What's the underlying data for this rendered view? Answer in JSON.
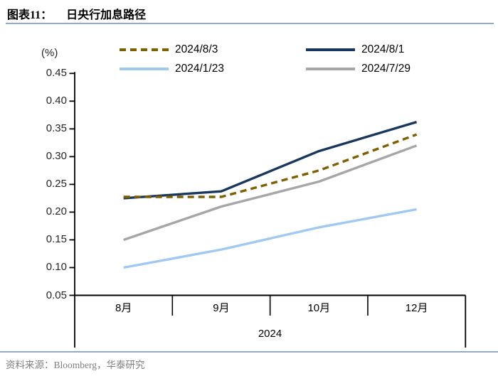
{
  "header": {
    "title_label": "图表11：",
    "title_text": "日央行加息路径"
  },
  "chart_data": {
    "type": "line",
    "title": "日央行加息路径",
    "unit_label": "(%)",
    "categories": [
      "8月",
      "9月",
      "10月",
      "12月"
    ],
    "x_axis_group_label": "2024",
    "series": [
      {
        "name": "2024/8/3",
        "color": "#7F6000",
        "dash": true,
        "values": [
          0.2275,
          0.2275,
          0.275,
          0.34
        ]
      },
      {
        "name": "2024/8/1",
        "color": "#17375E",
        "dash": false,
        "values": [
          0.225,
          0.2375,
          0.31,
          0.3625
        ]
      },
      {
        "name": "2024/1/23",
        "color": "#A0C9F2",
        "dash": false,
        "values": [
          0.1,
          0.1325,
          0.1725,
          0.205
        ]
      },
      {
        "name": "2024/7/29",
        "color": "#A6A6A6",
        "dash": false,
        "values": [
          0.15,
          0.21,
          0.255,
          0.32
        ]
      }
    ],
    "ylim": [
      0.05,
      0.45
    ],
    "ytick_step": 0.05,
    "ytick_labels": [
      "0.45",
      "0.40",
      "0.35",
      "0.30",
      "0.25",
      "0.20",
      "0.15",
      "0.10",
      "0.05"
    ],
    "grid": false,
    "legend_position": "top"
  },
  "footer": {
    "source_text": "资料来源：Bloomberg，华泰研究"
  },
  "colors": {
    "axis": "#000000",
    "rule": "#8EABC8",
    "source_text": "#7F7F7F"
  }
}
